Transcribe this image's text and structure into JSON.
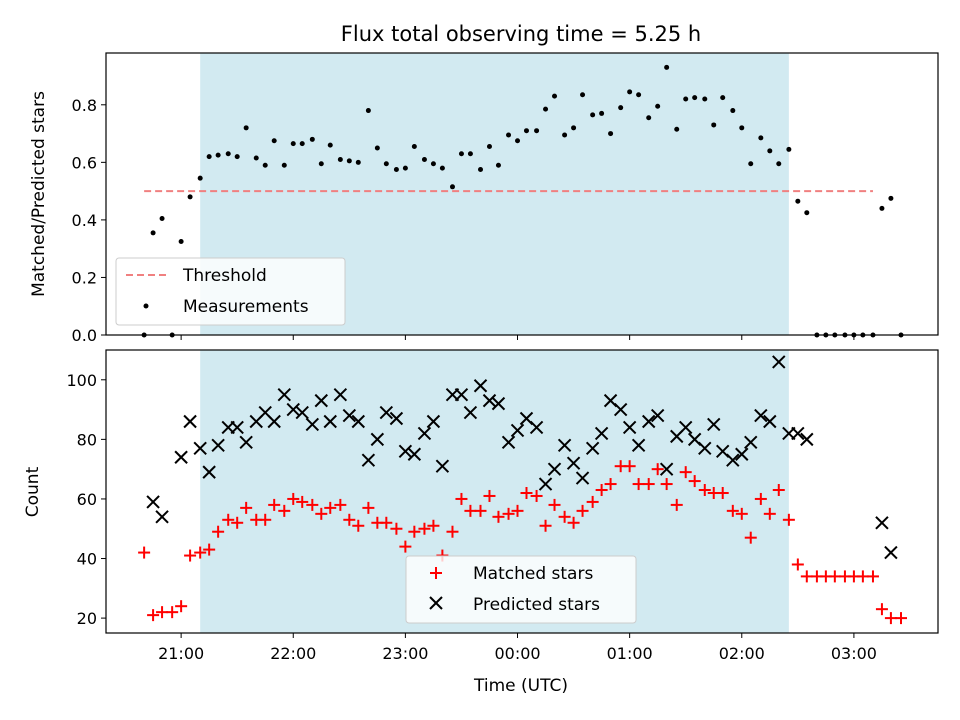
{
  "chart_data": {
    "type": "scatter",
    "title": "Flux total observing time = 5.25 h",
    "xlabel": "Time (UTC)",
    "x_ticks": [
      "21:00",
      "22:00",
      "23:00",
      "00:00",
      "01:00",
      "02:00",
      "03:00"
    ],
    "x_range_hours": [
      20.33,
      27.75
    ],
    "shaded_interval_hours": [
      21.17,
      26.42
    ],
    "shade_color": "#add8e6",
    "panels": [
      {
        "name": "ratio",
        "ylabel": "Matched/Predicted stars",
        "ylim": [
          0.0,
          0.98
        ],
        "y_ticks": [
          "0.0",
          "0.2",
          "0.4",
          "0.6",
          "0.8"
        ],
        "legend_position": "lower left",
        "threshold": {
          "name": "Threshold",
          "value": 0.5,
          "color": "#f08080",
          "x_range": [
            20.67,
            27.17
          ]
        },
        "series": [
          {
            "name": "Measurements",
            "color": "#000000",
            "marker": "dot",
            "points": [
              [
                20.67,
                0
              ],
              [
                20.75,
                0.355
              ],
              [
                20.83,
                0.405
              ],
              [
                20.92,
                0
              ],
              [
                21.0,
                0.325
              ],
              [
                21.08,
                0.48
              ],
              [
                21.17,
                0.545
              ],
              [
                21.25,
                0.62
              ],
              [
                21.33,
                0.625
              ],
              [
                21.42,
                0.63
              ],
              [
                21.5,
                0.62
              ],
              [
                21.58,
                0.72
              ],
              [
                21.67,
                0.615
              ],
              [
                21.75,
                0.59
              ],
              [
                21.83,
                0.675
              ],
              [
                21.92,
                0.59
              ],
              [
                22.0,
                0.665
              ],
              [
                22.08,
                0.665
              ],
              [
                22.17,
                0.68
              ],
              [
                22.25,
                0.595
              ],
              [
                22.33,
                0.66
              ],
              [
                22.42,
                0.61
              ],
              [
                22.5,
                0.605
              ],
              [
                22.58,
                0.6
              ],
              [
                22.67,
                0.78
              ],
              [
                22.75,
                0.65
              ],
              [
                22.83,
                0.595
              ],
              [
                22.92,
                0.575
              ],
              [
                23.0,
                0.58
              ],
              [
                23.08,
                0.655
              ],
              [
                23.17,
                0.61
              ],
              [
                23.25,
                0.595
              ],
              [
                23.33,
                0.58
              ],
              [
                23.42,
                0.515
              ],
              [
                23.5,
                0.63
              ],
              [
                23.58,
                0.63
              ],
              [
                23.67,
                0.575
              ],
              [
                23.75,
                0.655
              ],
              [
                23.83,
                0.59
              ],
              [
                23.92,
                0.695
              ],
              [
                24.0,
                0.675
              ],
              [
                24.08,
                0.71
              ],
              [
                24.17,
                0.71
              ],
              [
                24.25,
                0.785
              ],
              [
                24.33,
                0.83
              ],
              [
                24.42,
                0.695
              ],
              [
                24.5,
                0.72
              ],
              [
                24.58,
                0.835
              ],
              [
                24.67,
                0.765
              ],
              [
                24.75,
                0.77
              ],
              [
                24.83,
                0.7
              ],
              [
                24.92,
                0.79
              ],
              [
                25.0,
                0.845
              ],
              [
                25.08,
                0.835
              ],
              [
                25.17,
                0.755
              ],
              [
                25.25,
                0.795
              ],
              [
                25.33,
                0.93
              ],
              [
                25.42,
                0.715
              ],
              [
                25.5,
                0.82
              ],
              [
                25.58,
                0.825
              ],
              [
                25.67,
                0.82
              ],
              [
                25.75,
                0.73
              ],
              [
                25.83,
                0.825
              ],
              [
                25.92,
                0.78
              ],
              [
                26.0,
                0.72
              ],
              [
                26.08,
                0.595
              ],
              [
                26.17,
                0.685
              ],
              [
                26.25,
                0.64
              ],
              [
                26.33,
                0.595
              ],
              [
                26.42,
                0.645
              ],
              [
                26.5,
                0.465
              ],
              [
                26.58,
                0.425
              ],
              [
                26.67,
                0
              ],
              [
                26.75,
                0
              ],
              [
                26.83,
                0
              ],
              [
                26.92,
                0
              ],
              [
                27.0,
                0
              ],
              [
                27.08,
                0
              ],
              [
                27.17,
                0
              ],
              [
                27.25,
                0.44
              ],
              [
                27.33,
                0.475
              ],
              [
                27.42,
                0
              ]
            ]
          }
        ]
      },
      {
        "name": "counts",
        "ylabel": "Count",
        "ylim": [
          15,
          110
        ],
        "y_ticks": [
          "20",
          "40",
          "60",
          "80",
          "100"
        ],
        "legend_position": "lower center",
        "series": [
          {
            "name": "Matched stars",
            "color": "#ff0000",
            "marker": "plus",
            "points": [
              [
                20.67,
                42
              ],
              [
                20.75,
                21
              ],
              [
                20.83,
                22
              ],
              [
                20.92,
                22
              ],
              [
                21.0,
                24
              ],
              [
                21.08,
                41
              ],
              [
                21.17,
                42
              ],
              [
                21.25,
                43
              ],
              [
                21.33,
                49
              ],
              [
                21.42,
                53
              ],
              [
                21.5,
                52
              ],
              [
                21.58,
                57
              ],
              [
                21.67,
                53
              ],
              [
                21.75,
                53
              ],
              [
                21.83,
                58
              ],
              [
                21.92,
                56
              ],
              [
                22.0,
                60
              ],
              [
                22.08,
                59
              ],
              [
                22.17,
                58
              ],
              [
                22.25,
                55
              ],
              [
                22.33,
                57
              ],
              [
                22.42,
                58
              ],
              [
                22.5,
                53
              ],
              [
                22.58,
                51
              ],
              [
                22.67,
                57
              ],
              [
                22.75,
                52
              ],
              [
                22.83,
                52
              ],
              [
                22.92,
                50
              ],
              [
                23.0,
                44
              ],
              [
                23.08,
                49
              ],
              [
                23.17,
                50
              ],
              [
                23.25,
                51
              ],
              [
                23.33,
                41
              ],
              [
                23.42,
                49
              ],
              [
                23.5,
                60
              ],
              [
                23.58,
                56
              ],
              [
                23.67,
                56
              ],
              [
                23.75,
                61
              ],
              [
                23.83,
                54
              ],
              [
                23.92,
                55
              ],
              [
                24.0,
                56
              ],
              [
                24.08,
                62
              ],
              [
                24.17,
                61
              ],
              [
                24.25,
                51
              ],
              [
                24.33,
                58
              ],
              [
                24.42,
                54
              ],
              [
                24.5,
                52
              ],
              [
                24.58,
                56
              ],
              [
                24.67,
                59
              ],
              [
                24.75,
                63
              ],
              [
                24.83,
                65
              ],
              [
                24.92,
                71
              ],
              [
                25.0,
                71
              ],
              [
                25.08,
                65
              ],
              [
                25.17,
                65
              ],
              [
                25.25,
                70
              ],
              [
                25.33,
                65
              ],
              [
                25.42,
                58
              ],
              [
                25.5,
                69
              ],
              [
                25.58,
                66
              ],
              [
                25.67,
                63
              ],
              [
                25.75,
                62
              ],
              [
                25.83,
                62
              ],
              [
                25.92,
                56
              ],
              [
                26.0,
                55
              ],
              [
                26.08,
                47
              ],
              [
                26.17,
                60
              ],
              [
                26.25,
                55
              ],
              [
                26.33,
                63
              ],
              [
                26.42,
                53
              ],
              [
                26.5,
                38
              ],
              [
                26.58,
                34
              ],
              [
                26.67,
                34
              ],
              [
                26.75,
                34
              ],
              [
                26.83,
                34
              ],
              [
                26.92,
                34
              ],
              [
                27.0,
                34
              ],
              [
                27.08,
                34
              ],
              [
                27.17,
                34
              ],
              [
                27.25,
                23
              ],
              [
                27.33,
                20
              ],
              [
                27.42,
                20
              ]
            ]
          },
          {
            "name": "Predicted stars",
            "color": "#000000",
            "marker": "x",
            "points": [
              [
                20.75,
                59
              ],
              [
                20.83,
                54
              ],
              [
                21.0,
                74
              ],
              [
                21.08,
                86
              ],
              [
                21.17,
                77
              ],
              [
                21.25,
                69
              ],
              [
                21.33,
                78
              ],
              [
                21.42,
                84
              ],
              [
                21.5,
                84
              ],
              [
                21.58,
                79
              ],
              [
                21.67,
                86
              ],
              [
                21.75,
                89
              ],
              [
                21.83,
                86
              ],
              [
                21.92,
                95
              ],
              [
                22.0,
                90
              ],
              [
                22.08,
                89
              ],
              [
                22.17,
                85
              ],
              [
                22.25,
                93
              ],
              [
                22.33,
                86
              ],
              [
                22.42,
                95
              ],
              [
                22.5,
                88
              ],
              [
                22.58,
                86
              ],
              [
                22.67,
                73
              ],
              [
                22.75,
                80
              ],
              [
                22.83,
                89
              ],
              [
                22.92,
                87
              ],
              [
                23.0,
                76
              ],
              [
                23.08,
                75
              ],
              [
                23.17,
                82
              ],
              [
                23.25,
                86
              ],
              [
                23.33,
                71
              ],
              [
                23.42,
                95
              ],
              [
                23.5,
                95
              ],
              [
                23.58,
                89
              ],
              [
                23.67,
                98
              ],
              [
                23.75,
                93
              ],
              [
                23.83,
                92
              ],
              [
                23.92,
                79
              ],
              [
                24.0,
                83
              ],
              [
                24.08,
                87
              ],
              [
                24.17,
                84
              ],
              [
                24.25,
                65
              ],
              [
                24.33,
                70
              ],
              [
                24.42,
                78
              ],
              [
                24.5,
                72
              ],
              [
                24.58,
                67
              ],
              [
                24.67,
                77
              ],
              [
                24.75,
                82
              ],
              [
                24.83,
                93
              ],
              [
                24.92,
                90
              ],
              [
                25.0,
                84
              ],
              [
                25.08,
                78
              ],
              [
                25.17,
                86
              ],
              [
                25.25,
                88
              ],
              [
                25.33,
                70
              ],
              [
                25.42,
                81
              ],
              [
                25.5,
                84
              ],
              [
                25.58,
                80
              ],
              [
                25.67,
                77
              ],
              [
                25.75,
                85
              ],
              [
                25.83,
                76
              ],
              [
                25.92,
                73
              ],
              [
                26.0,
                75
              ],
              [
                26.08,
                79
              ],
              [
                26.17,
                88
              ],
              [
                26.25,
                86
              ],
              [
                26.33,
                106
              ],
              [
                26.42,
                82
              ],
              [
                26.5,
                82
              ],
              [
                26.58,
                80
              ],
              [
                27.25,
                52
              ],
              [
                27.33,
                42
              ]
            ]
          }
        ]
      }
    ]
  }
}
